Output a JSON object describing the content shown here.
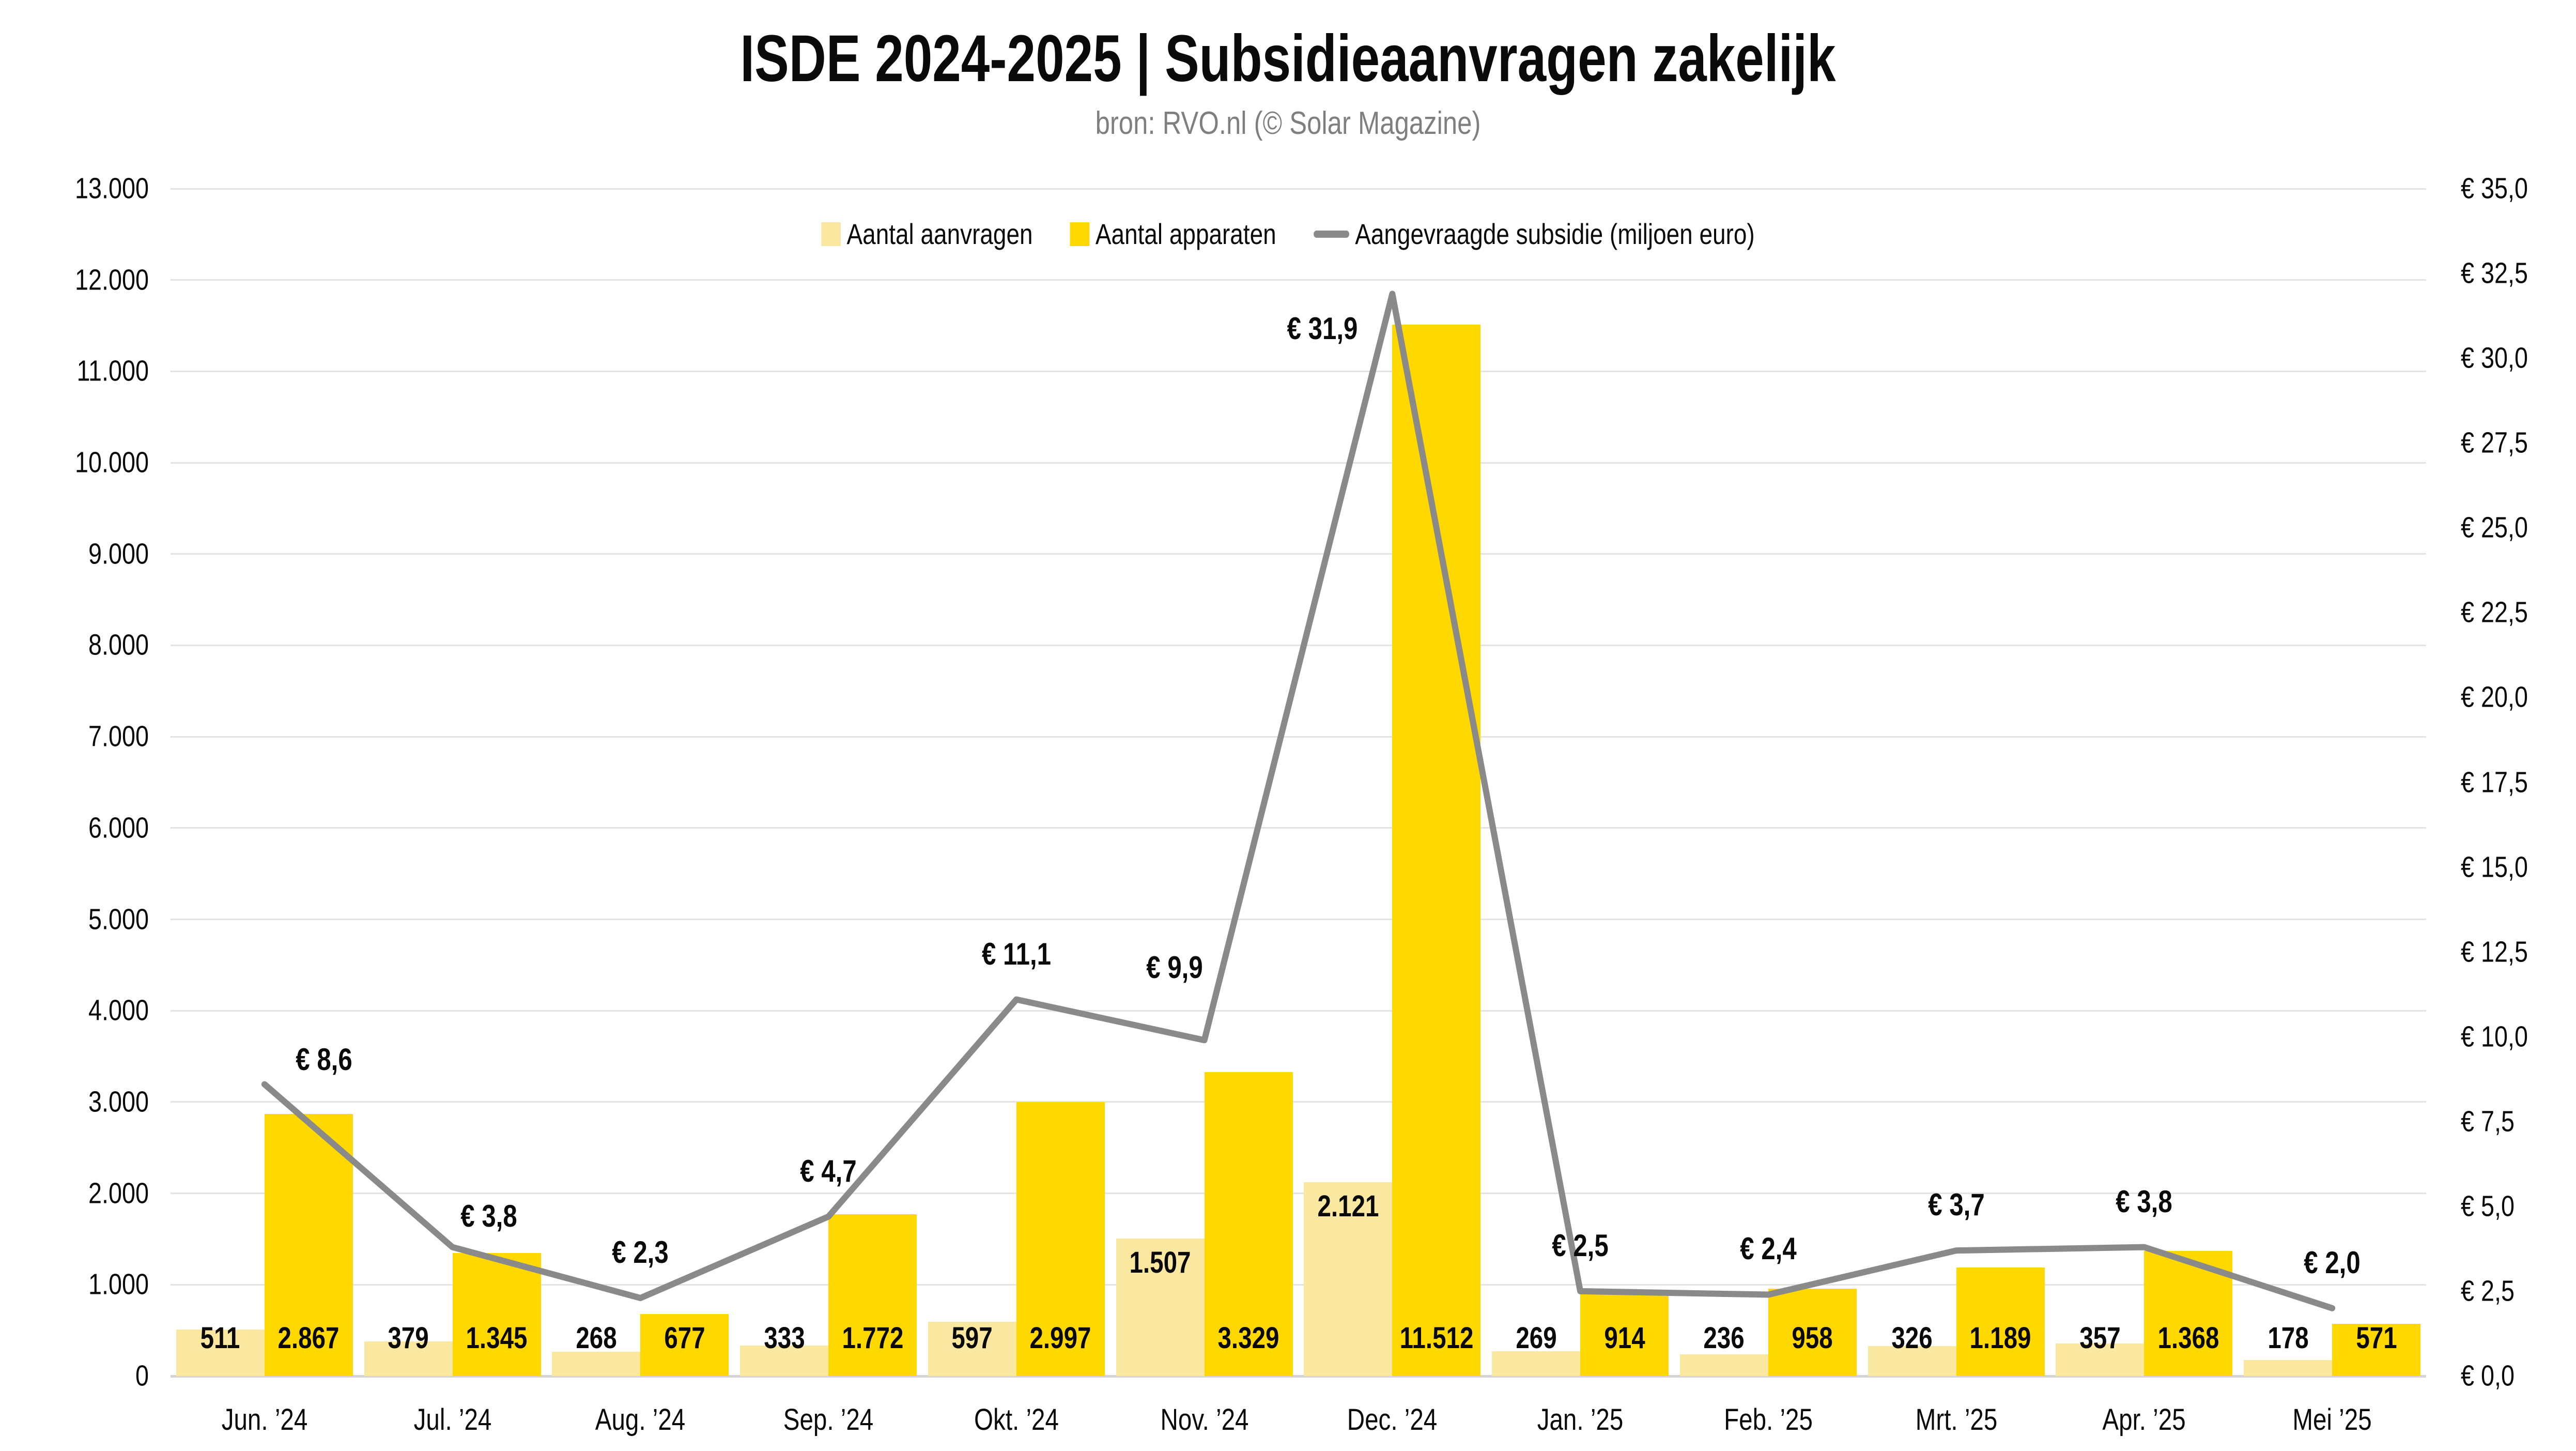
{
  "title": "ISDE 2024-2025 | Subsidieaanvragen zakelijk",
  "subtitle": "bron: RVO.nl (© Solar Magazine)",
  "colors": {
    "aanvragen_bar": "#FAE8A0",
    "apparaten_bar": "#FFD800",
    "subsidie_line": "#8A8A8A",
    "gridline": "#E3E3E3",
    "axis_baseline": "#D4D4D4",
    "text": "#0A0A0A",
    "subtitle_text": "#7F7F7F"
  },
  "chart_data": {
    "type": "combo",
    "title": "ISDE 2024-2025 | Subsidieaanvragen zakelijk",
    "subtitle": "bron: RVO.nl (© Solar Magazine)",
    "grid": true,
    "legend_position": "top-center",
    "categories": [
      "Jun. ’24",
      "Jul. ’24",
      "Aug. ’24",
      "Sep. ’24",
      "Okt. ’24",
      "Nov. ’24",
      "Dec. ’24",
      "Jan. ’25",
      "Feb. ’25",
      "Mrt. ’25",
      "Apr. ’25",
      "Mei ’25"
    ],
    "series": [
      {
        "name": "Aantal aanvragen",
        "type": "bar",
        "axis": "left",
        "color": "#FAE8A0",
        "values": [
          511,
          379,
          268,
          333,
          597,
          1507,
          2121,
          269,
          236,
          326,
          357,
          178
        ],
        "value_labels": [
          "511",
          "379",
          "268",
          "333",
          "597",
          "1.507",
          "2.121",
          "269",
          "236",
          "326",
          "357",
          "178"
        ]
      },
      {
        "name": "Aantal apparaten",
        "type": "bar",
        "axis": "left",
        "color": "#FFD800",
        "values": [
          2867,
          1345,
          677,
          1772,
          2997,
          3329,
          11512,
          914,
          958,
          1189,
          1368,
          571
        ],
        "value_labels": [
          "2.867",
          "1.345",
          "677",
          "1.772",
          "2.997",
          "3.329",
          "11.512",
          "914",
          "958",
          "1.189",
          "1.368",
          "571"
        ]
      },
      {
        "name": "Aangevraagde subsidie (miljoen euro)",
        "type": "line",
        "axis": "right",
        "color": "#8A8A8A",
        "values": [
          8.6,
          3.8,
          2.3,
          4.7,
          11.1,
          9.9,
          31.9,
          2.5,
          2.4,
          3.7,
          3.8,
          2.0
        ],
        "value_labels": [
          "€ 8,6",
          "€ 3,8",
          "€ 2,3",
          "€ 4,7",
          "€ 11,1",
          "€ 9,9",
          "€ 31,9",
          "€ 2,5",
          "€ 2,4",
          "€ 3,7",
          "€ 3,8",
          "€ 2,0"
        ]
      }
    ],
    "left_axis": {
      "min": 0,
      "max": 13000,
      "step": 1000,
      "tick_labels": [
        "0",
        "1.000",
        "2.000",
        "3.000",
        "4.000",
        "5.000",
        "6.000",
        "7.000",
        "8.000",
        "9.000",
        "10.000",
        "11.000",
        "12.000",
        "13.000"
      ]
    },
    "right_axis": {
      "min": 0,
      "max": 35,
      "step": 2.5,
      "tick_labels": [
        "€ 0,0",
        "€ 2,5",
        "€ 5,0",
        "€ 7,5",
        "€ 10,0",
        "€ 12,5",
        "€ 15,0",
        "€ 17,5",
        "€ 20,0",
        "€ 22,5",
        "€ 25,0",
        "€ 27,5",
        "€ 30,0",
        "€ 32,5",
        "€ 35,0"
      ]
    }
  }
}
